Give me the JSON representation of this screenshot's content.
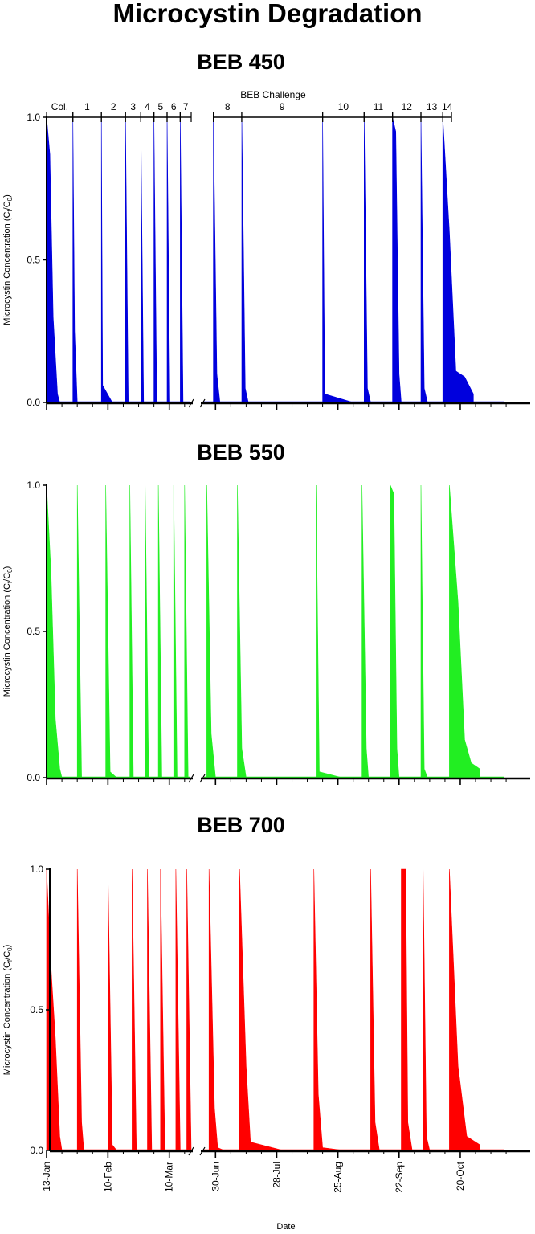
{
  "figure": {
    "title": "Microcystin Degradation",
    "xlabel": "Date"
  },
  "x_tick_labels": [
    "13-Jan",
    "10-Feb",
    "10-Mar",
    "30-Jun",
    "28-Jul",
    "25-Aug",
    "22-Sep",
    "20-Oct"
  ],
  "challenge_bar": {
    "title": "BEB Challenge",
    "labels": [
      "Col.",
      "1",
      "2",
      "3",
      "4",
      "5",
      "6",
      "7",
      "8",
      "9",
      "10",
      "11",
      "12",
      "13",
      "14"
    ]
  },
  "chart_data": [
    {
      "type": "area",
      "title": "BEB 450",
      "ylabel_main": "Microcystin Concentration (C",
      "ylabel_sub1": "f",
      "ylabel_mid": "/C",
      "ylabel_sub2": "0",
      "ylabel_end": ")",
      "ylim": [
        0,
        1
      ],
      "yticks": [
        "0.0",
        "0.5",
        "1.0"
      ],
      "color": "#0000dd",
      "grid": false,
      "events": [
        {
          "name": "Col.",
          "profile": [
            [
              0,
              1.0
            ],
            [
              1.5,
              0.87
            ],
            [
              3,
              0.3
            ],
            [
              5,
              0.03
            ],
            [
              6,
              0.0
            ]
          ]
        },
        {
          "name": "1",
          "profile": [
            [
              0,
              1.0
            ],
            [
              0.8,
              0.25
            ],
            [
              2,
              0.0
            ]
          ]
        },
        {
          "name": "2",
          "profile": [
            [
              0,
              1.0
            ],
            [
              0.6,
              0.06
            ],
            [
              5,
              0.0
            ]
          ]
        },
        {
          "name": "3",
          "profile": [
            [
              0,
              1.0
            ],
            [
              1.3,
              0.0
            ]
          ]
        },
        {
          "name": "4",
          "profile": [
            [
              0,
              1.0
            ],
            [
              1.3,
              0.0
            ]
          ]
        },
        {
          "name": "5",
          "profile": [
            [
              0,
              1.0
            ],
            [
              1.3,
              0.0
            ]
          ]
        },
        {
          "name": "6",
          "profile": [
            [
              0,
              1.0
            ],
            [
              1.3,
              0.0
            ]
          ]
        },
        {
          "name": "7",
          "profile": [
            [
              0,
              1.0
            ],
            [
              1.3,
              0.0
            ]
          ]
        },
        {
          "name": "8",
          "profile": [
            [
              0,
              1.0
            ],
            [
              1.6,
              0.1
            ],
            [
              3,
              0.0
            ]
          ]
        },
        {
          "name": "9",
          "profile": [
            [
              0,
              1.0
            ],
            [
              1.6,
              0.05
            ],
            [
              3,
              0.0
            ]
          ]
        },
        {
          "name": "10",
          "profile": [
            [
              0,
              1.0
            ],
            [
              1,
              0.03
            ],
            [
              14,
              0.0
            ]
          ]
        },
        {
          "name": "11",
          "profile": [
            [
              0,
              1.0
            ],
            [
              1.5,
              0.05
            ],
            [
              3,
              0.0
            ]
          ]
        },
        {
          "name": "12",
          "profile": [
            [
              0,
              1.0
            ],
            [
              1.5,
              0.95
            ],
            [
              3,
              0.1
            ],
            [
              4,
              0.0
            ]
          ]
        },
        {
          "name": "13",
          "profile": [
            [
              0,
              1.0
            ],
            [
              1.5,
              0.05
            ],
            [
              3,
              0.0
            ]
          ]
        },
        {
          "name": "14",
          "profile": [
            [
              0,
              1.0
            ],
            [
              3,
              0.6
            ],
            [
              6,
              0.11
            ],
            [
              10,
              0.09
            ],
            [
              14,
              0.03
            ]
          ]
        }
      ]
    },
    {
      "type": "area",
      "title": "BEB 550",
      "ylabel_main": "Microcystin Concentration (C",
      "ylabel_sub1": "f",
      "ylabel_mid": "/C",
      "ylabel_sub2": "0",
      "ylabel_end": ")",
      "ylim": [
        0,
        1
      ],
      "yticks": [
        "0.0",
        "0.5",
        "1.0"
      ],
      "color": "#22ee22",
      "grid": false,
      "events": [
        {
          "name": "Col.",
          "profile": [
            [
              0,
              1.0
            ],
            [
              2,
              0.7
            ],
            [
              4,
              0.2
            ],
            [
              6,
              0.03
            ],
            [
              7,
              0.0
            ]
          ]
        },
        {
          "name": "1",
          "profile": [
            [
              0,
              1.0
            ],
            [
              2,
              0.0
            ]
          ]
        },
        {
          "name": "2",
          "profile": [
            [
              0,
              1.0
            ],
            [
              2,
              0.02
            ],
            [
              5,
              0.0
            ]
          ]
        },
        {
          "name": "3",
          "profile": [
            [
              0,
              1.0
            ],
            [
              1.6,
              0.0
            ]
          ]
        },
        {
          "name": "4",
          "profile": [
            [
              0,
              1.0
            ],
            [
              1.6,
              0.0
            ]
          ]
        },
        {
          "name": "5",
          "profile": [
            [
              0,
              1.0
            ],
            [
              1.6,
              0.0
            ]
          ]
        },
        {
          "name": "6",
          "profile": [
            [
              0,
              1.0
            ],
            [
              1.6,
              0.0
            ]
          ]
        },
        {
          "name": "7",
          "profile": [
            [
              0,
              1.0
            ],
            [
              1.6,
              0.0
            ]
          ]
        },
        {
          "name": "8",
          "profile": [
            [
              0,
              1.0
            ],
            [
              2,
              0.15
            ],
            [
              4,
              0.0
            ]
          ]
        },
        {
          "name": "9",
          "profile": [
            [
              0,
              1.0
            ],
            [
              2,
              0.1
            ],
            [
              4,
              0.0
            ]
          ]
        },
        {
          "name": "10",
          "profile": [
            [
              0,
              1.0
            ],
            [
              1.5,
              0.02
            ],
            [
              12,
              0.0
            ]
          ]
        },
        {
          "name": "11",
          "profile": [
            [
              0,
              1.0
            ],
            [
              2,
              0.1
            ],
            [
              3,
              0.0
            ]
          ]
        },
        {
          "name": "12",
          "profile": [
            [
              0,
              1.0
            ],
            [
              1.6,
              0.97
            ],
            [
              3,
              0.1
            ],
            [
              4,
              0.0
            ]
          ]
        },
        {
          "name": "13",
          "profile": [
            [
              0,
              1.0
            ],
            [
              1.5,
              0.03
            ],
            [
              3,
              0.0
            ]
          ]
        },
        {
          "name": "14",
          "profile": [
            [
              0,
              1.0
            ],
            [
              4,
              0.6
            ],
            [
              7,
              0.13
            ],
            [
              10,
              0.05
            ],
            [
              14,
              0.03
            ]
          ]
        }
      ]
    },
    {
      "type": "area",
      "title": "BEB 700",
      "ylabel_main": "Microcystin Concentration (C",
      "ylabel_sub1": "f",
      "ylabel_mid": "/C",
      "ylabel_sub2": "0",
      "ylabel_end": ")",
      "ylim": [
        0,
        1
      ],
      "yticks": [
        "0.0",
        "0.5",
        "1.0"
      ],
      "color": "#ff0000",
      "grid": false,
      "events": [
        {
          "name": "Col.",
          "profile": [
            [
              0,
              1.0
            ],
            [
              2,
              0.65
            ],
            [
              4,
              0.4
            ],
            [
              6,
              0.05
            ],
            [
              7,
              0.0
            ]
          ]
        },
        {
          "name": "1",
          "profile": [
            [
              0,
              1.0
            ],
            [
              2,
              0.1
            ],
            [
              3,
              0.0
            ]
          ]
        },
        {
          "name": "2",
          "profile": [
            [
              0,
              1.0
            ],
            [
              2,
              0.02
            ],
            [
              4,
              0.0
            ]
          ]
        },
        {
          "name": "3",
          "profile": [
            [
              0,
              1.0
            ],
            [
              2,
              0.0
            ]
          ]
        },
        {
          "name": "4",
          "profile": [
            [
              0,
              1.0
            ],
            [
              2,
              0.0
            ]
          ]
        },
        {
          "name": "5",
          "profile": [
            [
              0,
              1.0
            ],
            [
              2,
              0.0
            ]
          ]
        },
        {
          "name": "6",
          "profile": [
            [
              0,
              1.0
            ],
            [
              2,
              0.0
            ]
          ]
        },
        {
          "name": "7",
          "profile": [
            [
              0,
              1.0
            ],
            [
              2,
              0.0
            ]
          ]
        },
        {
          "name": "8",
          "profile": [
            [
              0,
              1.0
            ],
            [
              2.5,
              0.15
            ],
            [
              4,
              0.01
            ],
            [
              7,
              0.0
            ]
          ]
        },
        {
          "name": "9",
          "profile": [
            [
              0,
              1.0
            ],
            [
              3,
              0.3
            ],
            [
              5,
              0.03
            ],
            [
              20,
              0.0
            ]
          ]
        },
        {
          "name": "10",
          "profile": [
            [
              0,
              1.0
            ],
            [
              2,
              0.2
            ],
            [
              4,
              0.01
            ],
            [
              14,
              0.0
            ]
          ]
        },
        {
          "name": "11",
          "profile": [
            [
              0,
              1.0
            ],
            [
              2,
              0.1
            ],
            [
              4,
              0.0
            ]
          ]
        },
        {
          "name": "12",
          "profile": [
            [
              0,
              1.0
            ],
            [
              2,
              1.0
            ],
            [
              3,
              0.1
            ],
            [
              5,
              0.0
            ]
          ]
        },
        {
          "name": "13",
          "profile": [
            [
              0,
              1.0
            ],
            [
              1.5,
              0.05
            ],
            [
              3,
              0.0
            ]
          ]
        },
        {
          "name": "14",
          "profile": [
            [
              0,
              1.0
            ],
            [
              4,
              0.3
            ],
            [
              8,
              0.05
            ],
            [
              14,
              0.02
            ]
          ]
        }
      ]
    }
  ]
}
